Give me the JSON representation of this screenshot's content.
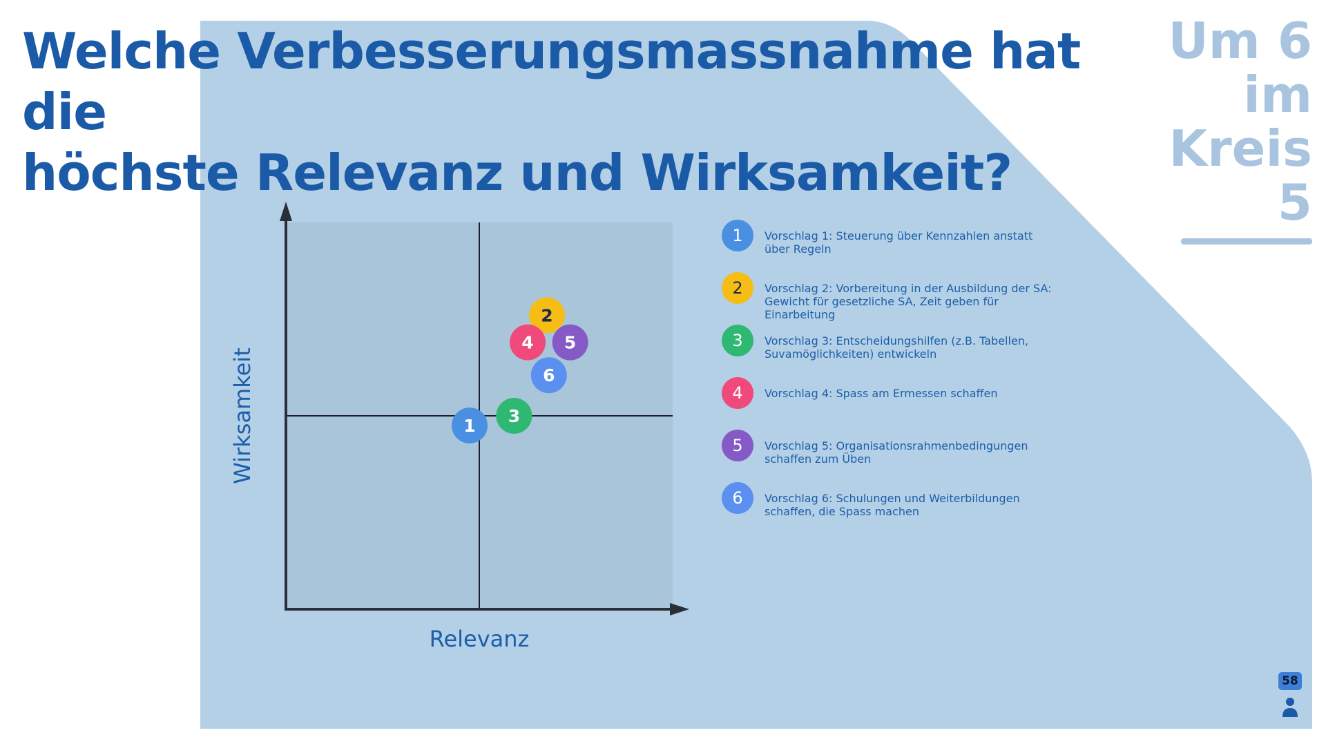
{
  "title": {
    "line1": "Welche Verbesserungsmassnahme hat die",
    "line2": "höchste Relevanz und Wirksamkeit?"
  },
  "side_note": {
    "lines": [
      "Um 6",
      "im",
      "Kreis",
      "5"
    ]
  },
  "page_badge": "58",
  "colors": {
    "panel": "#b3d0e7",
    "plot": "#a9c5da",
    "title": "#1a5aa6",
    "side_note": "#a9c4df"
  },
  "chart_data": {
    "type": "scatter",
    "xlabel": "Relevanz",
    "ylabel": "Wirksamkeit",
    "xlim": [
      0,
      10
    ],
    "ylim": [
      0,
      10
    ],
    "quadrant_divider": {
      "x": 5,
      "y": 5
    },
    "grid": false,
    "points": [
      {
        "label": "1",
        "x": 4.75,
        "y": 4.75,
        "color": "#4a90e2"
      },
      {
        "label": "2",
        "x": 6.75,
        "y": 7.6,
        "color": "#f6bd16"
      },
      {
        "label": "3",
        "x": 5.9,
        "y": 5.0,
        "color": "#2eb872"
      },
      {
        "label": "4",
        "x": 6.25,
        "y": 6.9,
        "color": "#f0497b"
      },
      {
        "label": "5",
        "x": 7.35,
        "y": 6.9,
        "color": "#8559c6"
      },
      {
        "label": "6",
        "x": 6.8,
        "y": 6.05,
        "color": "#5b8ff0"
      }
    ]
  },
  "legend": {
    "items": [
      {
        "num": "1",
        "text": "Vorschlag 1: Steuerung über Kennzahlen anstatt über Regeln",
        "color": "#4a90e2"
      },
      {
        "num": "2",
        "text": "Vorschlag 2: Vorbereitung in der Ausbildung der SA: Gewicht für gesetzliche SA, Zeit geben für Einarbeitung",
        "color": "#f6bd16",
        "dark": true
      },
      {
        "num": "3",
        "text": "Vorschlag 3: Entscheidungshilfen (z.B. Tabellen, Suvamöglichkeiten) entwickeln",
        "color": "#2eb872"
      },
      {
        "num": "4",
        "text": "Vorschlag 4: Spass am Ermessen schaffen",
        "color": "#f0497b"
      },
      {
        "num": "5",
        "text": "Vorschlag 5: Organisationsrahmenbedingungen schaffen zum Üben",
        "color": "#8559c6"
      },
      {
        "num": "6",
        "text": "Vorschlag 6: Schulungen und Weiterbildungen schaffen, die Spass machen",
        "color": "#5b8ff0"
      }
    ]
  }
}
